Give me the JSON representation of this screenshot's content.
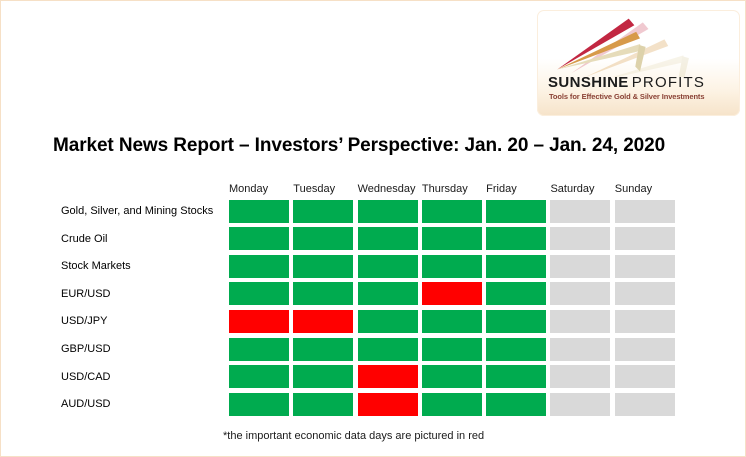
{
  "header": {
    "title": "Market News Report – Investors’ Perspective: Jan. 20 – Jan. 24, 2020"
  },
  "logo": {
    "brand_bold": "SUNSHINE",
    "brand_light": "PROFITS",
    "tagline": "Tools for Effective Gold & Silver Investments",
    "colors": {
      "ray_red": "#c22742",
      "ray_gold": "#d79a4a",
      "ray_cream": "#e6dcba",
      "ray_cream_dark": "#ddd2ab",
      "tagline_text": "#8a4236"
    }
  },
  "footnote": "*the important economic data days are pictured in red",
  "chart_data": {
    "type": "heatmap",
    "title": "Market News Report – Investors’ Perspective: Jan. 20 – Jan. 24, 2020",
    "columns": [
      "Monday",
      "Tuesday",
      "Wednesday",
      "Thursday",
      "Friday",
      "Saturday",
      "Sunday"
    ],
    "rows": [
      {
        "label": "Gold, Silver, and Mining Stocks",
        "cells": [
          "green",
          "green",
          "green",
          "green",
          "green",
          "gray",
          "gray"
        ]
      },
      {
        "label": "Crude Oil",
        "cells": [
          "green",
          "green",
          "green",
          "green",
          "green",
          "gray",
          "gray"
        ]
      },
      {
        "label": "Stock Markets",
        "cells": [
          "green",
          "green",
          "green",
          "green",
          "green",
          "gray",
          "gray"
        ]
      },
      {
        "label": "EUR/USD",
        "cells": [
          "green",
          "green",
          "green",
          "red",
          "green",
          "gray",
          "gray"
        ]
      },
      {
        "label": "USD/JPY",
        "cells": [
          "red",
          "red",
          "green",
          "green",
          "green",
          "gray",
          "gray"
        ]
      },
      {
        "label": "GBP/USD",
        "cells": [
          "green",
          "green",
          "green",
          "green",
          "green",
          "gray",
          "gray"
        ]
      },
      {
        "label": "USD/CAD",
        "cells": [
          "green",
          "green",
          "red",
          "green",
          "green",
          "gray",
          "gray"
        ]
      },
      {
        "label": "AUD/USD",
        "cells": [
          "green",
          "green",
          "red",
          "green",
          "green",
          "gray",
          "gray"
        ]
      }
    ],
    "cell_colors": {
      "green": "#00ab4f",
      "red": "#ff0000",
      "gray": "#d9d9d9"
    },
    "legend_note": "*the important economic data days are pictured in red",
    "layout": {
      "grid": "off",
      "weekend_columns_inactive": [
        "Saturday",
        "Sunday"
      ]
    }
  }
}
